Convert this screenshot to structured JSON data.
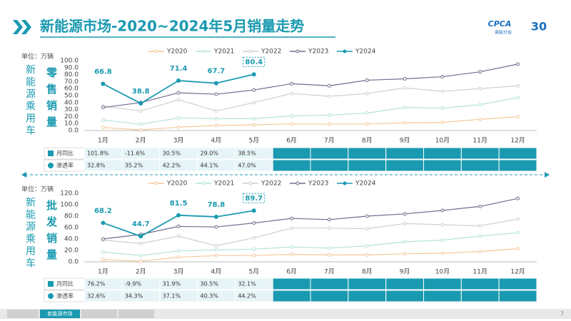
{
  "header": {
    "title": "新能源市场-2020~2024年5月销量走势",
    "logo": "CPCA",
    "org": "乘联分会",
    "anniversary": "30"
  },
  "footer": {
    "tab": "新能源市场",
    "page": "7"
  },
  "chart_data": [
    {
      "type": "line",
      "group_label": "新能源乘用车",
      "side_label": "零售销量",
      "unit": "单位：万辆",
      "categories": [
        "1月",
        "2月",
        "3月",
        "4月",
        "5月",
        "6月",
        "7月",
        "8月",
        "9月",
        "10月",
        "11月",
        "12月"
      ],
      "ylim": [
        0,
        100
      ],
      "yticks": [
        {
          "value": 0,
          "label": "0.0"
        },
        {
          "value": 10,
          "label": "10.0"
        },
        {
          "value": 20,
          "label": "20.0"
        },
        {
          "value": 30,
          "label": "30.0"
        },
        {
          "value": 40,
          "label": "40.0"
        },
        {
          "value": 50,
          "label": "50.0"
        },
        {
          "value": 60,
          "label": "60.0"
        },
        {
          "value": 70,
          "label": "70.0"
        },
        {
          "value": 80,
          "label": "80.0"
        },
        {
          "value": 90,
          "label": "90.0"
        },
        {
          "value": 100,
          "label": "100.0"
        }
      ],
      "grid": false,
      "series": [
        {
          "name": "Y2020",
          "color": "#f5c89a",
          "values": [
            4.4,
            0.8,
            4.9,
            7.2,
            8.2,
            9.5,
            9.1,
            9.4,
            11.0,
            11.6,
            16.0,
            19.8
          ]
        },
        {
          "name": "Y2021",
          "color": "#b5e2dc",
          "values": [
            15,
            9,
            18,
            17,
            17,
            21,
            22,
            25,
            33,
            32,
            37,
            47
          ]
        },
        {
          "name": "Y2022",
          "color": "#cfcfcf",
          "values": [
            35,
            28,
            44,
            28,
            40,
            53,
            49,
            53,
            61,
            56,
            60,
            64
          ]
        },
        {
          "name": "Y2023",
          "color": "#6e6e8c",
          "values": [
            33,
            40,
            54,
            52,
            58,
            67,
            64,
            72,
            74,
            77,
            84,
            95
          ]
        },
        {
          "name": "Y2024",
          "color": "#1a9ab0",
          "values": [
            66.8,
            38.8,
            71.4,
            67.7,
            80.4,
            null,
            null,
            null,
            null,
            null,
            null,
            null
          ],
          "labels": true
        }
      ],
      "table": {
        "rows": [
          {
            "label": "月同比",
            "cells": [
              "101.8%",
              "-11.6%",
              "30.5%",
              "29.0%",
              "38.5%"
            ]
          },
          {
            "label": "渗透率",
            "cells": [
              "32.8%",
              "35.2%",
              "42.2%",
              "44.1%",
              "47.0%"
            ]
          }
        ]
      }
    },
    {
      "type": "line",
      "group_label": "新能源乘用车",
      "side_label": "批发销量",
      "unit": "单位：万辆",
      "categories": [
        "1月",
        "2月",
        "3月",
        "4月",
        "5月",
        "6月",
        "7月",
        "8月",
        "9月",
        "10月",
        "11月",
        "12月"
      ],
      "ylim": [
        0,
        120
      ],
      "yticks": [
        {
          "value": 0,
          "label": "0.0"
        },
        {
          "value": 20,
          "label": "20.0"
        },
        {
          "value": 40,
          "label": "40.0"
        },
        {
          "value": 60,
          "label": "60.0"
        },
        {
          "value": 80,
          "label": "80.0"
        },
        {
          "value": 100,
          "label": "100.0"
        },
        {
          "value": 120,
          "label": "120.0"
        }
      ],
      "grid": false,
      "series": [
        {
          "name": "Y2020",
          "color": "#f5c89a",
          "values": [
            4,
            1,
            8,
            11,
            11,
            13,
            12,
            12,
            14,
            15,
            18,
            23
          ]
        },
        {
          "name": "Y2021",
          "color": "#b5e2dc",
          "values": [
            17,
            11,
            19,
            21,
            22,
            26,
            24,
            28,
            35,
            38,
            45,
            51
          ]
        },
        {
          "name": "Y2022",
          "color": "#cfcfcf",
          "values": [
            38,
            32,
            45,
            28,
            42,
            59,
            59,
            58,
            67,
            65,
            63,
            75
          ]
        },
        {
          "name": "Y2023",
          "color": "#6e6e8c",
          "values": [
            40,
            48,
            62,
            61,
            68,
            76,
            74,
            80,
            84,
            90,
            97,
            111
          ]
        },
        {
          "name": "Y2024",
          "color": "#1a9ab0",
          "values": [
            68.2,
            44.7,
            81.5,
            78.8,
            89.7,
            null,
            null,
            null,
            null,
            null,
            null,
            null
          ],
          "labels": true
        }
      ],
      "table": {
        "rows": [
          {
            "label": "月同比",
            "cells": [
              "76.2%",
              "-9.9%",
              "31.9%",
              "30.5%",
              "32.1%"
            ]
          },
          {
            "label": "渗透率",
            "cells": [
              "32.6%",
              "34.3%",
              "37.1%",
              "40.3%",
              "44.2%"
            ]
          }
        ]
      }
    }
  ]
}
